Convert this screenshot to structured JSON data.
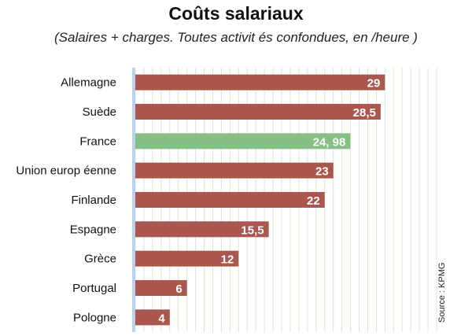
{
  "chart_data": {
    "type": "bar",
    "orientation": "horizontal",
    "title": "Coûts salariaux",
    "subtitle": "(Salaires + charges. Toutes activit és confondues, en      /heure )",
    "source": "Source : KPMG",
    "categories": [
      "Allemagne",
      "Suède",
      "France",
      "Union europ éenne",
      "Finlande",
      "Espagne",
      "Grèce",
      "Portugal",
      "Pologne"
    ],
    "values": [
      29,
      28.5,
      24.98,
      23,
      22,
      15.5,
      12,
      6,
      4
    ],
    "value_labels": [
      "29",
      "28,5",
      "24, 98",
      "23",
      "22",
      "15,5",
      "12",
      "6",
      "4"
    ],
    "xlim": [
      0,
      35
    ],
    "grid": true,
    "colors": {
      "bar": "#a9574f",
      "highlight": "#86bf86",
      "grid": "#dde8cf",
      "axis": "#b8d3ec"
    },
    "highlight_category": "France"
  }
}
